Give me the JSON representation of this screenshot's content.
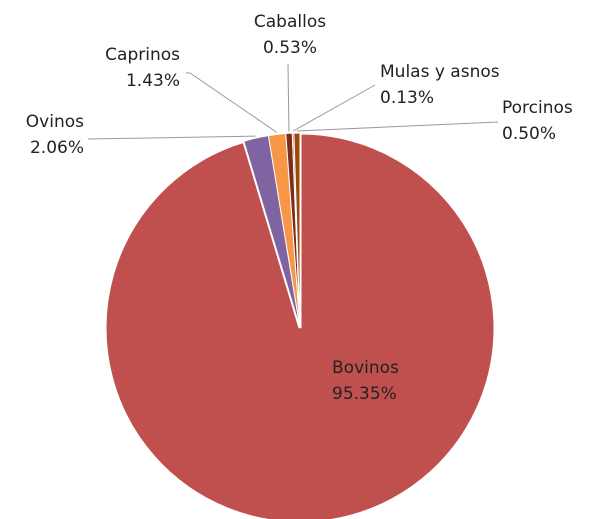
{
  "chart_data": {
    "type": "pie",
    "categories": [
      "Bovinos",
      "Ovinos",
      "Caprinos",
      "Caballos",
      "Mulas y asnos",
      "Porcinos"
    ],
    "values": [
      95.35,
      2.06,
      1.43,
      0.53,
      0.13,
      0.5
    ],
    "value_labels": [
      "95.35%",
      "2.06%",
      "1.43%",
      "0.53%",
      "0.13%",
      "0.50%"
    ],
    "colors": [
      "#c0504d",
      "#8064a2",
      "#f79646",
      "#7b2c1a",
      "#b65c1f",
      "#9c4a0e"
    ]
  }
}
